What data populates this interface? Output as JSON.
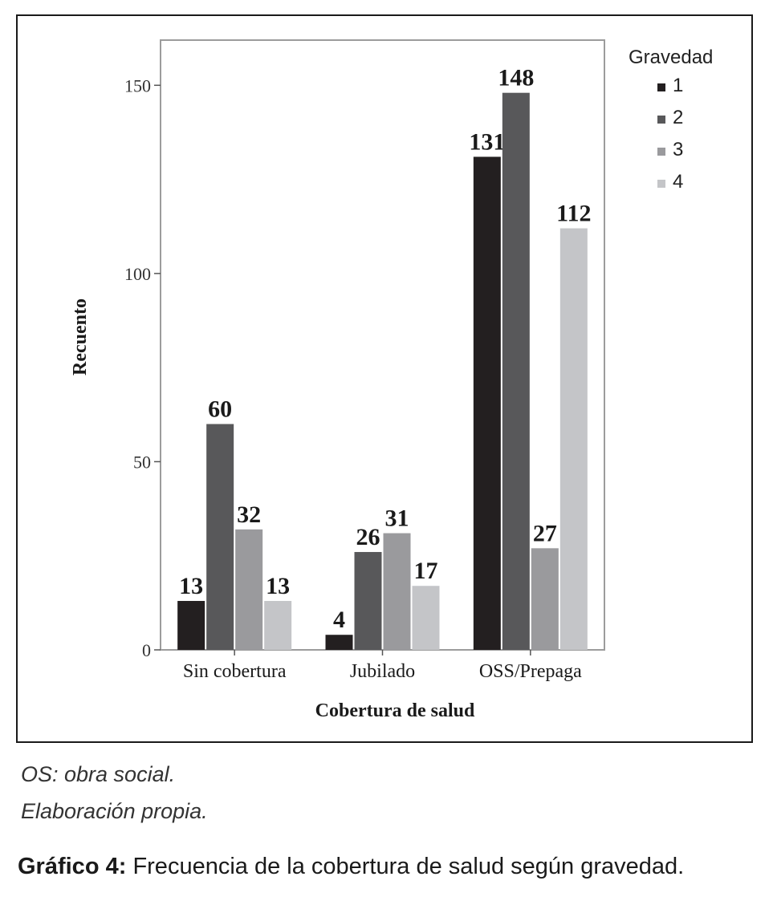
{
  "chart_data": {
    "type": "bar",
    "categories": [
      "Sin cobertura",
      "Jubilado",
      "OSS/Prepaga"
    ],
    "series": [
      {
        "name": "1",
        "values": [
          13,
          4,
          131
        ],
        "color": "#231f20"
      },
      {
        "name": "2",
        "values": [
          60,
          26,
          148
        ],
        "color": "#58585a"
      },
      {
        "name": "3",
        "values": [
          32,
          31,
          27
        ],
        "color": "#9a9a9d"
      },
      {
        "name": "4",
        "values": [
          13,
          17,
          112
        ],
        "color": "#c4c5c8"
      }
    ],
    "xlabel": "Cobertura de salud",
    "ylabel": "Recuento",
    "ylim": [
      0,
      162
    ],
    "yticks": [
      0,
      50,
      100,
      150
    ],
    "legend_title": "Gravedad",
    "legend_position": "top-right",
    "data_labels": true,
    "grid": false
  },
  "notes": [
    "OS: obra social.",
    "Elaboración propia."
  ],
  "caption": {
    "label": "Gráfico 4:",
    "text": "Frecuencia de la cobertura de salud según gravedad."
  }
}
